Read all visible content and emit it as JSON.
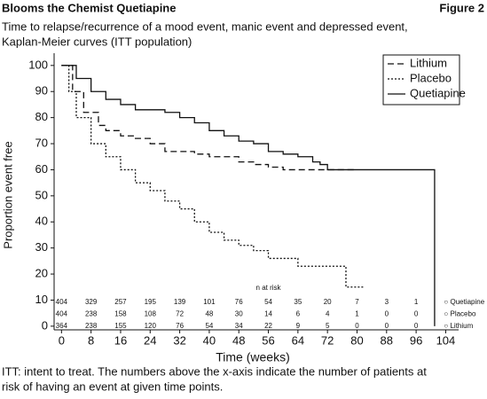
{
  "header": {
    "title": "Blooms the Chemist Quetiapine",
    "figure": "Figure 2"
  },
  "chart_data": {
    "type": "line",
    "step": true,
    "subtitle": [
      "Time to relapse/recurrence of a mood event, manic event and depressed event,",
      "Kaplan-Meier curves (ITT population)"
    ],
    "x_label": "Time (weeks)",
    "y_label": "Proportion event free",
    "xlim": [
      -2,
      107.5
    ],
    "ylim": [
      -1.4,
      104.7
    ],
    "xticks": [
      0,
      8,
      16,
      24,
      32,
      40,
      48,
      56,
      64,
      72,
      80,
      88,
      96,
      104
    ],
    "yticks": [
      0,
      10,
      20,
      30,
      40,
      50,
      60,
      70,
      80,
      90,
      100
    ],
    "legend": "top-right",
    "series": [
      {
        "name": "Lithium",
        "color": "#111",
        "dash": "dashed",
        "x": [
          0,
          3,
          6,
          10,
          12,
          16,
          20,
          24,
          28,
          36,
          40,
          48,
          52,
          56,
          60,
          80
        ],
        "values": [
          100,
          90,
          82,
          77,
          75,
          73,
          72,
          70,
          67,
          66,
          65,
          63,
          62,
          61,
          60,
          60
        ]
      },
      {
        "name": "Placebo",
        "color": "#111",
        "dash": "dotted",
        "x": [
          0,
          2,
          4,
          8,
          12,
          16,
          20,
          24,
          28,
          32,
          36,
          40,
          44,
          48,
          52,
          56,
          64,
          77,
          82
        ],
        "values": [
          100,
          90,
          80,
          70,
          65,
          60,
          55,
          52,
          48,
          45,
          40,
          36,
          33,
          31,
          29,
          26,
          23,
          15,
          15
        ]
      },
      {
        "name": "Quetiapine",
        "color": "#111",
        "dash": "solid",
        "x": [
          0,
          4,
          8,
          12,
          16,
          20,
          28,
          32,
          36,
          40,
          44,
          48,
          52,
          56,
          60,
          64,
          68,
          70,
          72,
          101,
          101
        ],
        "values": [
          100,
          95,
          90,
          87,
          85,
          83,
          82,
          80,
          78,
          75,
          73,
          71,
          70,
          67,
          66,
          65,
          63,
          62,
          60,
          60,
          0
        ]
      }
    ],
    "risk_table": {
      "title": "n at risk",
      "x": [
        0,
        8,
        16,
        24,
        32,
        40,
        48,
        56,
        64,
        72,
        80,
        88,
        96
      ],
      "rows": [
        {
          "label": "○ Quetiapine",
          "values": [
            404,
            329,
            257,
            195,
            139,
            101,
            76,
            54,
            35,
            20,
            7,
            3,
            1
          ]
        },
        {
          "label": "○ Placebo",
          "values": [
            404,
            238,
            158,
            108,
            72,
            48,
            30,
            14,
            6,
            4,
            1,
            0,
            0
          ]
        },
        {
          "label": "○ Lithium",
          "values": [
            364,
            238,
            155,
            120,
            76,
            54,
            34,
            22,
            9,
            5,
            0,
            0,
            0
          ]
        }
      ]
    }
  },
  "footnote": [
    "ITT: intent to treat. The numbers above the x-axis indicate the number of patients at",
    "risk of having an event at given time points."
  ]
}
